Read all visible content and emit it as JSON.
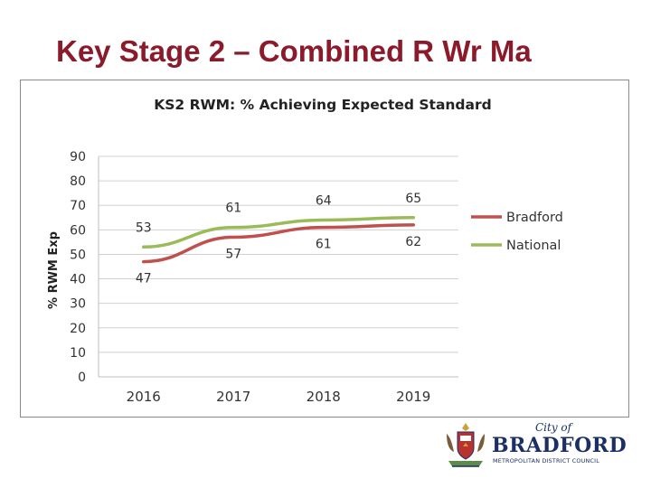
{
  "slide": {
    "title": "Key Stage 2 – Combined R Wr Ma"
  },
  "chart_data": {
    "type": "line",
    "title": "KS2 RWM: % Achieving Expected Standard",
    "ylabel": "% RWM Exp",
    "xlabel": "",
    "categories": [
      "2016",
      "2017",
      "2018",
      "2019"
    ],
    "yticks": [
      "0",
      "10",
      "20",
      "30",
      "40",
      "50",
      "60",
      "70",
      "80",
      "90"
    ],
    "ylim": [
      0,
      90
    ],
    "grid": true,
    "legend": "right",
    "series": [
      {
        "name": "Bradford",
        "values": [
          47,
          57,
          61,
          62
        ],
        "labels": [
          "47",
          "57",
          "61",
          "62"
        ],
        "color": "#c0504d"
      },
      {
        "name": "National",
        "values": [
          53,
          61,
          64,
          65
        ],
        "labels": [
          "53",
          "61",
          "64",
          "65"
        ],
        "color": "#9bbb59"
      }
    ]
  },
  "logo": {
    "city_of": "City of",
    "name": "BRADFORD",
    "subtitle": "METROPOLITAN DISTRICT COUNCIL",
    "color": "#1a2f64"
  }
}
